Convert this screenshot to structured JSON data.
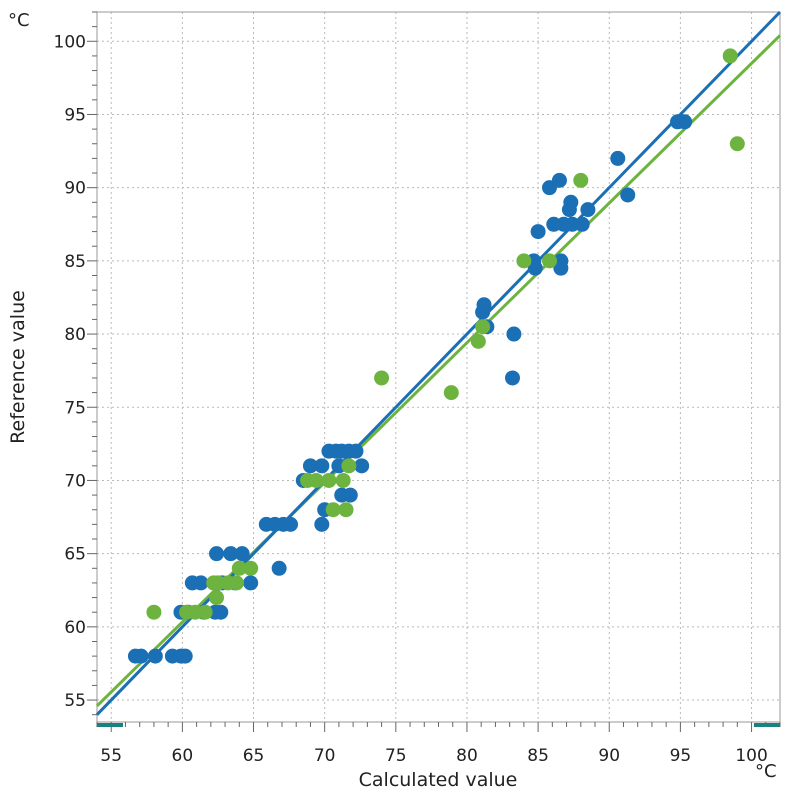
{
  "chart_data": {
    "type": "scatter",
    "xlabel": "Calculated value",
    "ylabel": "Reference value",
    "x_unit": "°C",
    "y_unit": "°C",
    "xlim": [
      54,
      102
    ],
    "ylim": [
      53.5,
      102
    ],
    "x_ticks": [
      55,
      60,
      65,
      70,
      75,
      80,
      85,
      90,
      95,
      100
    ],
    "y_ticks": [
      55,
      60,
      65,
      70,
      75,
      80,
      85,
      90,
      95,
      100
    ],
    "grid": true,
    "series": [
      {
        "color": "#1a6fb5",
        "points": [
          [
            56.7,
            58
          ],
          [
            57.1,
            58
          ],
          [
            58.1,
            58
          ],
          [
            59.3,
            58
          ],
          [
            59.9,
            58
          ],
          [
            60.2,
            58
          ],
          [
            59.9,
            61
          ],
          [
            60.4,
            61
          ],
          [
            61.5,
            61
          ],
          [
            62.3,
            61
          ],
          [
            62.7,
            61
          ],
          [
            60.7,
            63
          ],
          [
            61.3,
            63
          ],
          [
            62.8,
            63
          ],
          [
            63.7,
            63
          ],
          [
            64.8,
            63
          ],
          [
            62.4,
            65
          ],
          [
            63.4,
            65
          ],
          [
            64.2,
            65
          ],
          [
            66.8,
            64
          ],
          [
            65.9,
            67
          ],
          [
            66.5,
            67
          ],
          [
            67.1,
            67
          ],
          [
            67.6,
            67
          ],
          [
            68.5,
            70
          ],
          [
            69.0,
            71
          ],
          [
            69.8,
            71
          ],
          [
            69.8,
            67
          ],
          [
            70.0,
            68
          ],
          [
            70.3,
            72
          ],
          [
            70.8,
            72
          ],
          [
            71.2,
            72
          ],
          [
            71.7,
            72
          ],
          [
            72.2,
            72
          ],
          [
            71.0,
            71
          ],
          [
            72.6,
            71
          ],
          [
            71.2,
            69
          ],
          [
            71.8,
            69
          ],
          [
            81.2,
            82
          ],
          [
            81.1,
            81.5
          ],
          [
            81.4,
            80.5
          ],
          [
            83.3,
            80
          ],
          [
            83.2,
            77
          ],
          [
            84.7,
            85
          ],
          [
            84.8,
            84.5
          ],
          [
            85.0,
            87
          ],
          [
            85.8,
            90
          ],
          [
            86.1,
            87.5
          ],
          [
            86.5,
            90.5
          ],
          [
            86.6,
            85
          ],
          [
            86.6,
            84.5
          ],
          [
            86.8,
            87.5
          ],
          [
            87.2,
            88.5
          ],
          [
            87.3,
            89
          ],
          [
            87.4,
            87.5
          ],
          [
            88.1,
            87.5
          ],
          [
            88.5,
            88.5
          ],
          [
            90.6,
            92
          ],
          [
            91.3,
            89.5
          ],
          [
            94.8,
            94.5
          ],
          [
            95.3,
            94.5
          ]
        ],
        "trend": [
          [
            54,
            54
          ],
          [
            102,
            102
          ]
        ]
      },
      {
        "color": "#6db33f",
        "points": [
          [
            58.0,
            61
          ],
          [
            60.3,
            61
          ],
          [
            60.9,
            61
          ],
          [
            61.6,
            61
          ],
          [
            62.2,
            63
          ],
          [
            62.5,
            63
          ],
          [
            63.2,
            63
          ],
          [
            63.8,
            63
          ],
          [
            62.4,
            62
          ],
          [
            64.0,
            64
          ],
          [
            64.8,
            64
          ],
          [
            68.8,
            70
          ],
          [
            69.4,
            70
          ],
          [
            70.3,
            70
          ],
          [
            70.6,
            68
          ],
          [
            71.3,
            70
          ],
          [
            71.5,
            68
          ],
          [
            71.7,
            71
          ],
          [
            74.0,
            77
          ],
          [
            78.9,
            76
          ],
          [
            80.8,
            79.5
          ],
          [
            81.1,
            80.5
          ],
          [
            84.0,
            85
          ],
          [
            85.8,
            85
          ],
          [
            88.0,
            90.5
          ],
          [
            98.5,
            99
          ],
          [
            99.0,
            93
          ]
        ],
        "trend": [
          [
            54,
            54.6
          ],
          [
            102,
            100.4
          ]
        ]
      }
    ]
  }
}
